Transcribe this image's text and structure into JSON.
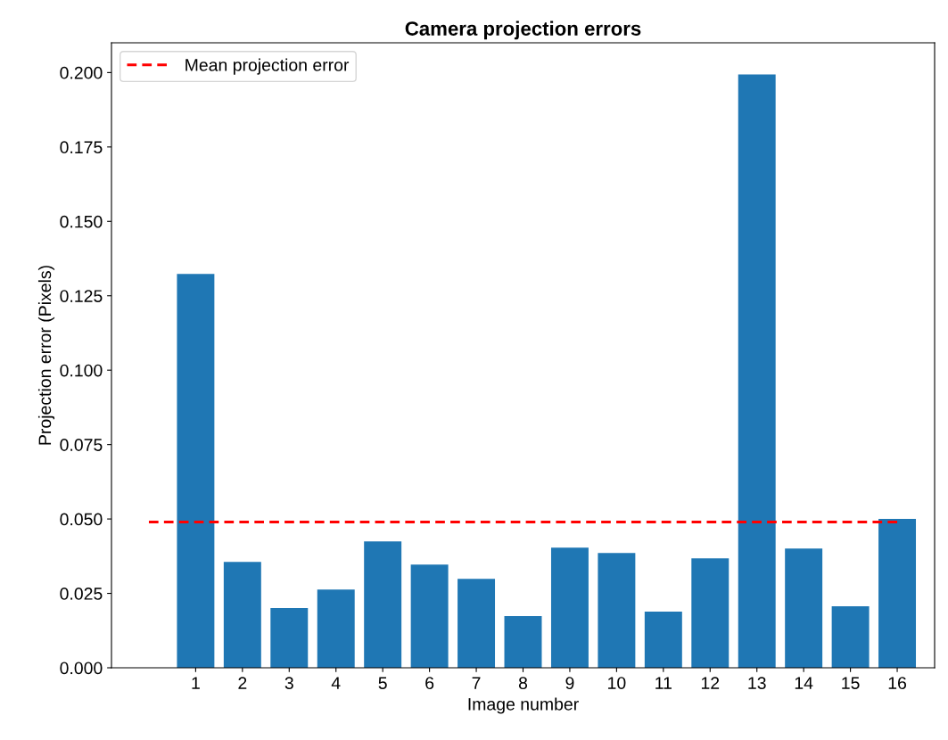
{
  "chart_data": {
    "type": "bar",
    "title": "Camera projection errors",
    "xlabel": "Image number",
    "ylabel": "Projection error (Pixels)",
    "x": [
      1,
      2,
      3,
      4,
      5,
      6,
      7,
      8,
      9,
      10,
      11,
      12,
      13,
      14,
      15,
      16
    ],
    "series": [
      {
        "color": "#1f77b4",
        "values": [
          0.1323,
          0.0356,
          0.0201,
          0.0263,
          0.0425,
          0.0347,
          0.0299,
          0.0174,
          0.0404,
          0.0386,
          0.0189,
          0.0368,
          0.1994,
          0.0401,
          0.0207,
          0.05
        ]
      },
      {
        "type": "line",
        "name": "Mean projection error",
        "color": "#ff0000",
        "line_style": "dashed",
        "x": [
          0,
          16
        ],
        "values": [
          0.049,
          0.049
        ]
      }
    ],
    "xlim": [
      -0.8,
      16.8
    ],
    "xticks": [
      1,
      2,
      3,
      4,
      5,
      6,
      7,
      8,
      9,
      10,
      11,
      12,
      13,
      14,
      15,
      16
    ],
    "ylim": [
      0,
      0.21
    ],
    "yticks": [
      {
        "value": 0,
        "label": "0.000"
      },
      {
        "value": 0.025,
        "label": "0.025"
      },
      {
        "value": 0.05,
        "label": "0.050"
      },
      {
        "value": 0.075,
        "label": "0.075"
      },
      {
        "value": 0.1,
        "label": "0.100"
      },
      {
        "value": 0.125,
        "label": "0.125"
      },
      {
        "value": 0.15,
        "label": "0.150"
      },
      {
        "value": 0.175,
        "label": "0.175"
      },
      {
        "value": 0.2,
        "label": "0.200"
      }
    ],
    "grid": false,
    "legend": "top left"
  }
}
